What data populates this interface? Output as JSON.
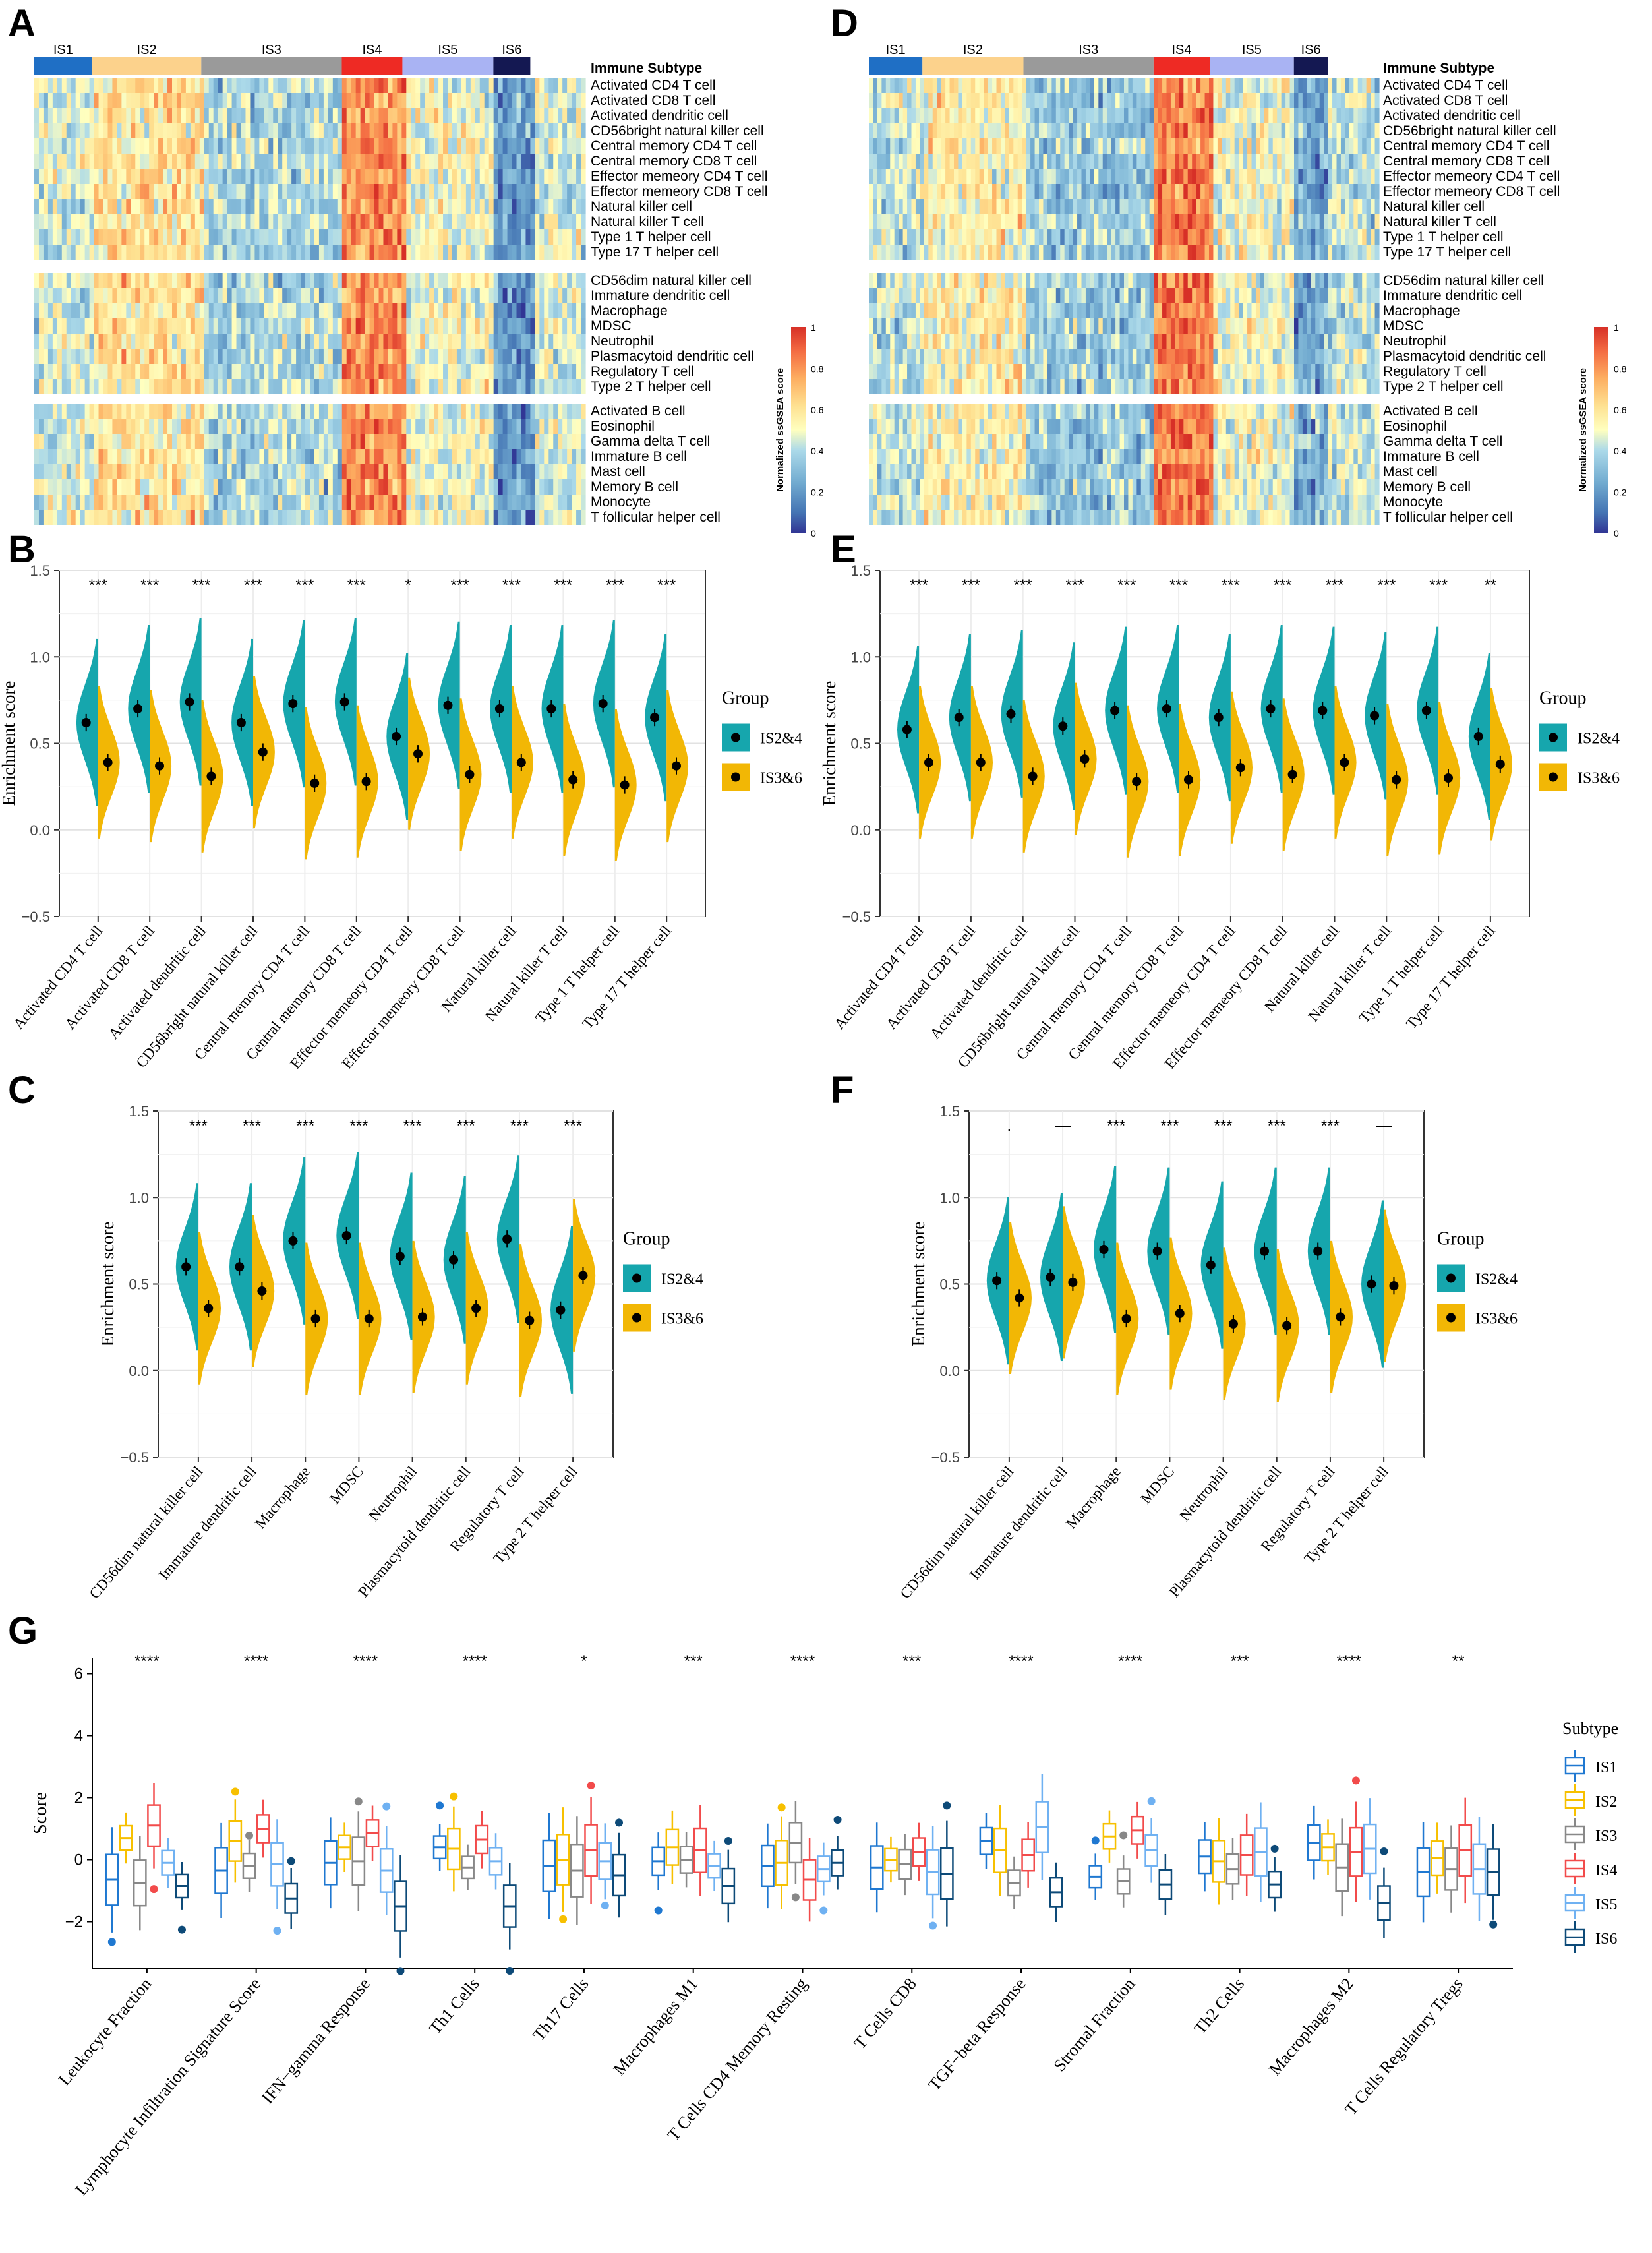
{
  "panels": {
    "A": "A",
    "B": "B",
    "C": "C",
    "D": "D",
    "E": "E",
    "F": "F",
    "G": "G"
  },
  "colors": {
    "is1": "#1f6fc5",
    "is2": "#fcd28c",
    "is3": "#9a9a9a",
    "is4": "#ee2a24",
    "is5": "#a9b3f3",
    "is6": "#141852",
    "teal": "#16a6ad",
    "gold": "#f2b705",
    "box": [
      "#1f78d1",
      "#f7c000",
      "#888888",
      "#f24b4b",
      "#6fb1f2",
      "#0d4a78"
    ]
  },
  "heatmaps": [
    {
      "subtype_title": "Immune Subtype",
      "subtypes": [
        "IS1",
        "IS2",
        "IS3",
        "IS4",
        "IS5",
        "IS6"
      ],
      "row_groups": [
        [
          "Activated CD4 T cell",
          "Activated CD8 T cell",
          "Activated dendritic cell",
          "CD56bright natural killer cell",
          "Central memory CD4 T cell",
          "Central memory CD8 T cell",
          "Effector memeory CD4 T cell",
          "Effector memeory CD8 T cell",
          "Natural killer cell",
          "Natural killer T cell",
          "Type 1 T helper cell",
          "Type 17 T helper cell"
        ],
        [
          "CD56dim natural killer cell",
          "Immature dendritic cell",
          "Macrophage",
          "MDSC",
          "Neutrophil",
          "Plasmacytoid dendritic cell",
          "Regulatory T cell",
          "Type 2 T helper cell"
        ],
        [
          "Activated B cell",
          "Eosinophil",
          "Gamma delta T cell",
          "Immature  B cell",
          "Mast cell",
          "Memory B cell",
          "Monocyte",
          "T follicular helper cell"
        ]
      ],
      "legend_title": "Normalized ssGSEA score",
      "legend_ticks": [
        "1",
        "0.8",
        "0.6",
        "0.4",
        "0.2",
        "0"
      ]
    },
    {
      "subtype_title": "Immune Subtype",
      "subtypes": [
        "IS1",
        "IS2",
        "IS3",
        "IS4",
        "IS5",
        "IS6"
      ],
      "row_groups": [
        [
          "Activated CD4 T cell",
          "Activated CD8 T cell",
          "Activated dendritic cell",
          "CD56bright natural killer cell",
          "Central memory CD4 T cell",
          "Central memory CD8 T cell",
          "Effector memeory CD4 T cell",
          "Effector memeory CD8 T cell",
          "Natural killer cell",
          "Natural killer T cell",
          "Type 1 T helper cell",
          "Type 17 T helper cell"
        ],
        [
          "CD56dim natural killer cell",
          "Immature dendritic cell",
          "Macrophage",
          "MDSC",
          "Neutrophil",
          "Plasmacytoid dendritic cell",
          "Regulatory T cell",
          "Type 2 T helper cell"
        ],
        [
          "Activated B cell",
          "Eosinophil",
          "Gamma delta T cell",
          "Immature  B cell",
          "Mast cell",
          "Memory B cell",
          "Monocyte",
          "T follicular helper cell"
        ]
      ],
      "legend_title": "Normalized ssGSEA score",
      "legend_ticks": [
        "1",
        "0.8",
        "0.6",
        "0.4",
        "0.2",
        "0"
      ]
    }
  ],
  "chart_data": [
    {
      "panel": "B",
      "type": "violin",
      "ylabel": "Enrichment score",
      "ylim": [
        -0.5,
        1.5
      ],
      "yticks": [
        "1.5",
        "1.0",
        "0.5",
        "0.0",
        "−0.5"
      ],
      "legend_title": "Group",
      "series_names": [
        "IS2&4",
        "IS3&6"
      ],
      "categories": [
        "Activated CD4 T cell",
        "Activated CD8 T cell",
        "Activated dendritic cell",
        "CD56bright natural killer cell",
        "Central memory CD4 T cell",
        "Central memory CD8 T cell",
        "Effector memeory CD4 T cell",
        "Effector memeory CD8 T cell",
        "Natural killer cell",
        "Natural killer T cell",
        "Type 1 T helper cell",
        "Type 17 T helper cell"
      ],
      "sig": [
        "***",
        "***",
        "***",
        "***",
        "***",
        "***",
        "*",
        "***",
        "***",
        "***",
        "***",
        "***"
      ],
      "mean_a": [
        0.62,
        0.7,
        0.74,
        0.62,
        0.73,
        0.74,
        0.54,
        0.72,
        0.7,
        0.7,
        0.73,
        0.65
      ],
      "mean_b": [
        0.39,
        0.37,
        0.31,
        0.45,
        0.27,
        0.28,
        0.44,
        0.32,
        0.39,
        0.29,
        0.26,
        0.37
      ]
    },
    {
      "panel": "C",
      "type": "violin",
      "ylabel": "Enrichment score",
      "ylim": [
        -0.5,
        1.5
      ],
      "yticks": [
        "1.5",
        "1.0",
        "0.5",
        "0.0",
        "−0.5"
      ],
      "legend_title": "Group",
      "series_names": [
        "IS2&4",
        "IS3&6"
      ],
      "categories": [
        "CD56dim natural killer cell",
        "Immature dendritic cell",
        "Macrophage",
        "MDSC",
        "Neutrophil",
        "Plasmacytoid dendritic cell",
        "Regulatory T cell",
        "Type 2 T helper cell"
      ],
      "sig": [
        "***",
        "***",
        "***",
        "***",
        "***",
        "***",
        "***",
        "***"
      ],
      "mean_a": [
        0.6,
        0.6,
        0.75,
        0.78,
        0.66,
        0.64,
        0.76,
        0.35
      ],
      "mean_b": [
        0.36,
        0.46,
        0.3,
        0.3,
        0.31,
        0.36,
        0.29,
        0.55
      ]
    },
    {
      "panel": "E",
      "type": "violin",
      "ylabel": "Enrichment score",
      "ylim": [
        -0.5,
        1.5
      ],
      "yticks": [
        "1.5",
        "1.0",
        "0.5",
        "0.0",
        "−0.5"
      ],
      "legend_title": "Group",
      "series_names": [
        "IS2&4",
        "IS3&6"
      ],
      "categories": [
        "Activated CD4 T cell",
        "Activated CD8 T cell",
        "Activated dendritic cell",
        "CD56bright natural killer cell",
        "Central memory CD4 T cell",
        "Central memory CD8 T cell",
        "Effector memeory CD4 T cell",
        "Effector memeory CD8 T cell",
        "Natural killer cell",
        "Natural killer T cell",
        "Type 1 T helper cell",
        "Type 17 T helper cell"
      ],
      "sig": [
        "***",
        "***",
        "***",
        "***",
        "***",
        "***",
        "***",
        "***",
        "***",
        "***",
        "***",
        "**"
      ],
      "mean_a": [
        0.58,
        0.65,
        0.67,
        0.6,
        0.69,
        0.7,
        0.65,
        0.7,
        0.69,
        0.66,
        0.69,
        0.54
      ],
      "mean_b": [
        0.39,
        0.39,
        0.31,
        0.41,
        0.28,
        0.29,
        0.36,
        0.32,
        0.39,
        0.29,
        0.3,
        0.38
      ]
    },
    {
      "panel": "F",
      "type": "violin",
      "ylabel": "Enrichment score",
      "ylim": [
        -0.5,
        1.5
      ],
      "yticks": [
        "1.5",
        "1.0",
        "0.5",
        "0.0",
        "−0.5"
      ],
      "legend_title": "Group",
      "series_names": [
        "IS2&4",
        "IS3&6"
      ],
      "categories": [
        "CD56dim natural killer cell",
        "Immature dendritic cell",
        "Macrophage",
        "MDSC",
        "Neutrophil",
        "Plasmacytoid dendritic cell",
        "Regulatory T cell",
        "Type 2 T helper cell"
      ],
      "sig": [
        ".",
        "—",
        "***",
        "***",
        "***",
        "***",
        "***",
        "—"
      ],
      "mean_a": [
        0.52,
        0.54,
        0.7,
        0.69,
        0.61,
        0.69,
        0.69,
        0.5
      ],
      "mean_b": [
        0.42,
        0.51,
        0.3,
        0.33,
        0.27,
        0.26,
        0.31,
        0.49
      ]
    },
    {
      "panel": "G",
      "type": "box",
      "ylabel": "Score",
      "ylim": [
        -3.5,
        6.5
      ],
      "yticks": [
        "6",
        "4",
        "2",
        "0",
        "−2"
      ],
      "legend_title": "Subtype",
      "series_names": [
        "IS1",
        "IS2",
        "IS3",
        "IS4",
        "IS5",
        "IS6"
      ],
      "categories": [
        "Leukocyte Fraction",
        "Lymphocyte Infiltration Signature Score",
        "IFN−gamma Response",
        "Th1 Cells",
        "Th17 Cells",
        "Macrophages M1",
        "T Cells CD4 Memory Resting",
        "T Cells CD8",
        "TGF−beta Response",
        "Stromal Fraction",
        "Th2 Cells",
        "Macrophages M2",
        "T Cells Regulatory Tregs"
      ],
      "sig": [
        "****",
        "****",
        "****",
        "****",
        "*",
        "***",
        "****",
        "***",
        "****",
        "****",
        "***",
        "****",
        "**"
      ],
      "medians": [
        [
          -0.65,
          0.7,
          -0.75,
          1.1,
          -0.1,
          -0.85
        ],
        [
          -0.35,
          0.6,
          -0.2,
          1.0,
          -0.15,
          -1.25
        ],
        [
          -0.1,
          0.4,
          -0.05,
          0.85,
          -0.35,
          -1.5
        ],
        [
          0.4,
          0.35,
          -0.25,
          0.65,
          -0.05,
          -1.5
        ],
        [
          -0.2,
          0.0,
          -0.35,
          0.3,
          -0.05,
          -0.5
        ],
        [
          -0.05,
          0.4,
          0.0,
          0.3,
          -0.2,
          -0.85
        ],
        [
          -0.2,
          -0.1,
          0.55,
          -0.65,
          -0.3,
          -0.1
        ],
        [
          -0.25,
          0.0,
          -0.15,
          0.25,
          -0.4,
          -0.45
        ],
        [
          0.6,
          0.3,
          -0.75,
          0.15,
          1.05,
          -1.05
        ],
        [
          -0.55,
          0.75,
          -0.7,
          0.95,
          0.3,
          -0.8
        ],
        [
          0.1,
          -0.05,
          -0.3,
          0.15,
          0.25,
          -0.8
        ],
        [
          0.55,
          0.4,
          -0.25,
          0.25,
          0.35,
          -1.4
        ],
        [
          -0.4,
          0.05,
          -0.3,
          0.3,
          -0.3,
          -0.4
        ]
      ]
    }
  ]
}
